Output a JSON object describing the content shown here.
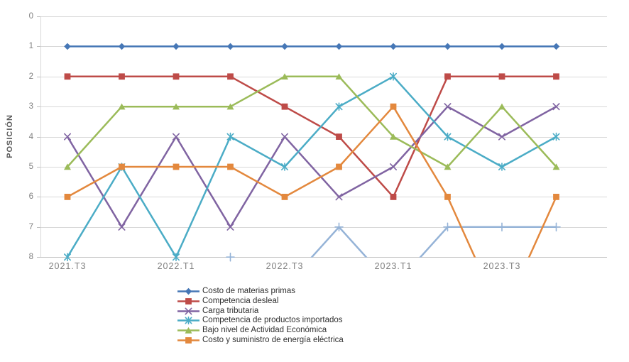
{
  "chart_data": {
    "type": "line",
    "title": "",
    "xlabel": "",
    "ylabel": "POSICIÓN",
    "y_axis": {
      "ticks": [
        "0",
        "1",
        "2",
        "3",
        "4",
        "5",
        "6",
        "7",
        "8"
      ],
      "min": 0,
      "max": 8,
      "inverted": true
    },
    "x_tick_labels": [
      "2021.T3",
      "2022.T1",
      "2022.T3",
      "2023.T1",
      "2023.T3"
    ],
    "x_label_point_indices": [
      0,
      2,
      4,
      6,
      8
    ],
    "n_points": 10,
    "grid": true,
    "legend_position": "bottom-center",
    "series": [
      {
        "name": "Costo de materias primas",
        "color": "#4677B6",
        "marker": "diamond",
        "in_legend": true,
        "values": [
          1,
          1,
          1,
          1,
          1,
          1,
          1,
          1,
          1,
          1
        ]
      },
      {
        "name": "Competencia desleal",
        "color": "#BE4B48",
        "marker": "square",
        "in_legend": true,
        "values": [
          2,
          2,
          2,
          2,
          3,
          4,
          6,
          2,
          2,
          2
        ]
      },
      {
        "name": "Carga tributaria",
        "color": "#8064A2",
        "marker": "x",
        "in_legend": true,
        "values": [
          4,
          7,
          4,
          7,
          4,
          6,
          5,
          3,
          4,
          3
        ]
      },
      {
        "name": "Competencia de productos importados",
        "color": "#4BACC6",
        "marker": "asterisk",
        "in_legend": true,
        "values": [
          8,
          5,
          8,
          4,
          5,
          3,
          2,
          4,
          5,
          4
        ]
      },
      {
        "name": "Bajo nivel de Actividad Económica",
        "color": "#9BBB59",
        "marker": "triangle",
        "in_legend": true,
        "values": [
          5,
          3,
          3,
          3,
          2,
          2,
          4,
          5,
          3,
          5
        ]
      },
      {
        "name": "Costo y suministro de energía eléctrica",
        "color": "#E3883D",
        "marker": "square",
        "in_legend": true,
        "values": [
          6,
          5,
          5,
          5,
          6,
          5,
          3,
          6,
          10,
          6
        ]
      },
      {
        "name": "",
        "color": "#95B3D7",
        "marker": "plus",
        "in_legend": false,
        "values": [
          null,
          null,
          null,
          8,
          9,
          7,
          9,
          7,
          7,
          7
        ]
      }
    ],
    "colors": {
      "grid": "#D9D9D9",
      "axis": "#C3C3C3",
      "tick_mark": "#BFBFBF",
      "tick_text": "#7F7F7F",
      "axis_title_text": "#595959",
      "legend_text": "#303030",
      "background": "#FFFFFF"
    }
  }
}
